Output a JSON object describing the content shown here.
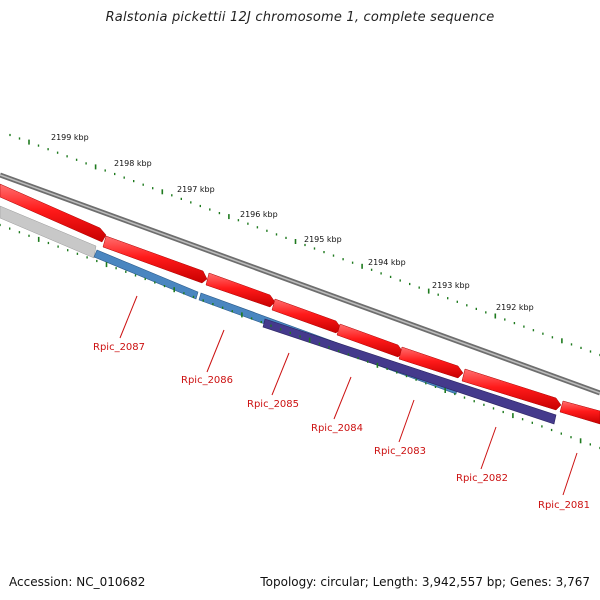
{
  "title": "Ralstonia pickettii 12J chromosome 1, complete sequence",
  "footer": {
    "accession": "Accession: NC_010682",
    "summary": "Topology: circular; Length: 3,942,557 bp; Genes: 3,767"
  },
  "scale_labels": [
    "2199 kbp",
    "2198 kbp",
    "2197 kbp",
    "2196 kbp",
    "2195 kbp",
    "2194 kbp",
    "2193 kbp",
    "2192 kbp"
  ],
  "genes": [
    "Rpic_2087",
    "Rpic_2086",
    "Rpic_2085",
    "Rpic_2084",
    "Rpic_2083",
    "Rpic_2082",
    "Rpic_2081"
  ],
  "colors": {
    "forward_cds": "#ff1a1a",
    "reverse_cds": "#4a86c0",
    "reverse_cds_dark": "#443a8c",
    "backbone": "#7a7a7a",
    "scale_ticks": "#1e7a1e",
    "label_text": "#cc1111",
    "grey_feature": "#bbbbbb"
  }
}
